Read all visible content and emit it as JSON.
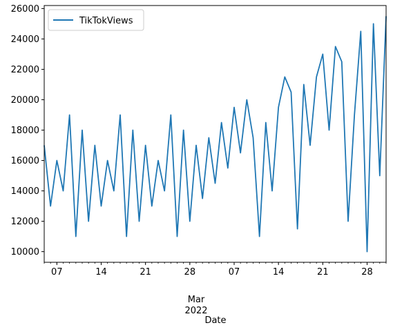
{
  "chart_data": {
    "type": "line",
    "xlabel": "Date",
    "ylabel": "",
    "x_start": "2022-02-05",
    "x_end": "2022-03-31",
    "ylim": [
      9300,
      26200
    ],
    "yticks": [
      10000,
      12000,
      14000,
      16000,
      18000,
      20000,
      22000,
      24000,
      26000
    ],
    "xticks": [
      {
        "date": "2022-02-07",
        "label": "07"
      },
      {
        "date": "2022-02-14",
        "label": "14"
      },
      {
        "date": "2022-02-21",
        "label": "21"
      },
      {
        "date": "2022-02-28",
        "label": "28"
      },
      {
        "date": "2022-03-07",
        "label": "07"
      },
      {
        "date": "2022-03-14",
        "label": "14"
      },
      {
        "date": "2022-03-21",
        "label": "21"
      },
      {
        "date": "2022-03-28",
        "label": "28"
      }
    ],
    "month_label": "Mar",
    "year_label": "2022",
    "legend": "upper left",
    "grid": false,
    "series": [
      {
        "name": "TikTokViews",
        "color": "#1f77b4",
        "points": [
          [
            "2022-02-05",
            17000
          ],
          [
            "2022-02-06",
            13000
          ],
          [
            "2022-02-07",
            16000
          ],
          [
            "2022-02-08",
            14000
          ],
          [
            "2022-02-09",
            19000
          ],
          [
            "2022-02-10",
            11000
          ],
          [
            "2022-02-11",
            18000
          ],
          [
            "2022-02-12",
            12000
          ],
          [
            "2022-02-13",
            17000
          ],
          [
            "2022-02-14",
            13000
          ],
          [
            "2022-02-15",
            16000
          ],
          [
            "2022-02-16",
            14000
          ],
          [
            "2022-02-17",
            19000
          ],
          [
            "2022-02-18",
            11000
          ],
          [
            "2022-02-19",
            18000
          ],
          [
            "2022-02-20",
            12000
          ],
          [
            "2022-02-21",
            17000
          ],
          [
            "2022-02-22",
            13000
          ],
          [
            "2022-02-23",
            16000
          ],
          [
            "2022-02-24",
            14000
          ],
          [
            "2022-02-25",
            19000
          ],
          [
            "2022-02-26",
            11000
          ],
          [
            "2022-02-27",
            18000
          ],
          [
            "2022-02-28",
            12000
          ],
          [
            "2022-03-01",
            17000
          ],
          [
            "2022-03-02",
            13500
          ],
          [
            "2022-03-03",
            17500
          ],
          [
            "2022-03-04",
            14500
          ],
          [
            "2022-03-05",
            18500
          ],
          [
            "2022-03-06",
            15500
          ],
          [
            "2022-03-07",
            19500
          ],
          [
            "2022-03-08",
            16500
          ],
          [
            "2022-03-09",
            20000
          ],
          [
            "2022-03-10",
            17500
          ],
          [
            "2022-03-11",
            11000
          ],
          [
            "2022-03-12",
            18500
          ],
          [
            "2022-03-13",
            14000
          ],
          [
            "2022-03-14",
            19500
          ],
          [
            "2022-03-15",
            21500
          ],
          [
            "2022-03-16",
            20500
          ],
          [
            "2022-03-17",
            11500
          ],
          [
            "2022-03-18",
            21000
          ],
          [
            "2022-03-19",
            17000
          ],
          [
            "2022-03-20",
            21500
          ],
          [
            "2022-03-21",
            23000
          ],
          [
            "2022-03-22",
            18000
          ],
          [
            "2022-03-23",
            23500
          ],
          [
            "2022-03-24",
            22500
          ],
          [
            "2022-03-25",
            12000
          ],
          [
            "2022-03-26",
            19000
          ],
          [
            "2022-03-27",
            24500
          ],
          [
            "2022-03-28",
            10000
          ],
          [
            "2022-03-29",
            25000
          ],
          [
            "2022-03-30",
            15000
          ],
          [
            "2022-03-31",
            25500
          ]
        ]
      }
    ]
  }
}
